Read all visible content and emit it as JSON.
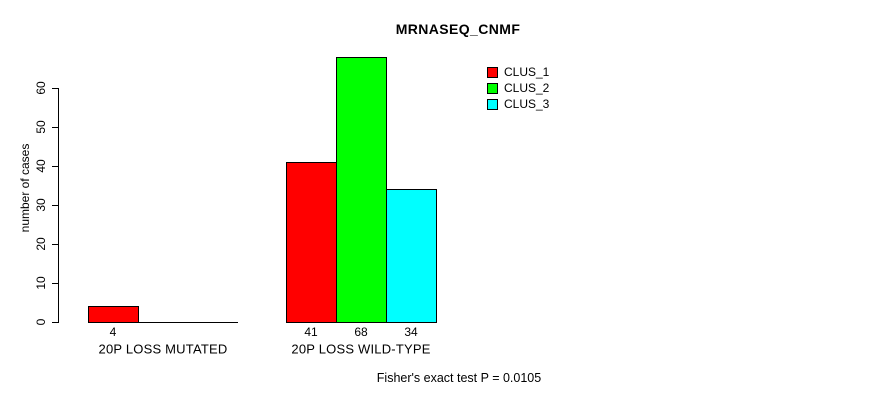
{
  "chart_data": {
    "type": "bar",
    "title": "MRNASEQ_CNMF",
    "ylabel": "number of cases",
    "xlabel": "",
    "categories": [
      "20P LOSS MUTATED",
      "20P LOSS WILD-TYPE"
    ],
    "series": [
      {
        "name": "CLUS_1",
        "color": "#FF0000",
        "values": [
          4,
          41
        ]
      },
      {
        "name": "CLUS_2",
        "color": "#00FF00",
        "values": [
          0,
          68
        ]
      },
      {
        "name": "CLUS_3",
        "color": "#00FFFF",
        "values": [
          0,
          34
        ]
      }
    ],
    "bar_value_labels": [
      "4",
      "41",
      "68",
      "34"
    ],
    "yticks": [
      0,
      10,
      20,
      30,
      40,
      50,
      60
    ],
    "ylim": [
      0,
      68
    ],
    "grid": false,
    "legend_position": "top-right",
    "legend_entries": [
      "CLUS_1",
      "CLUS_2",
      "CLUS_3"
    ],
    "annotation": "Fisher's exact test P = 0.0105",
    "colors": {
      "bar_red": "#FF0000",
      "bar_green": "#00FF00",
      "bar_cyan": "#00FFFF",
      "axis": "#000000",
      "text": "#000000",
      "background": "#FFFFFF"
    }
  }
}
